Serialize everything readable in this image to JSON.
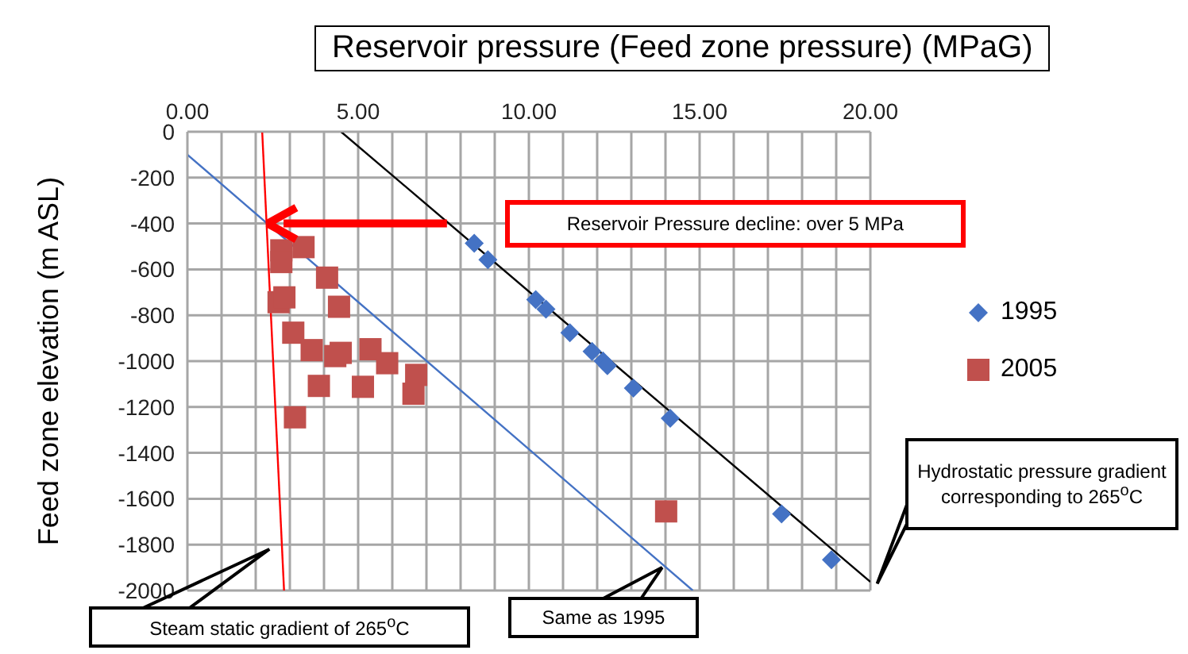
{
  "chart_data": {
    "type": "scatter",
    "xlabel": "Reservoir pressure (Feed zone pressure) (MPaG)",
    "ylabel": "Feed zone elevation (m ASL)",
    "xlim": [
      0,
      20
    ],
    "xticks": [
      {
        "value": 0,
        "label": "0.00"
      },
      {
        "value": 1,
        "label": null
      },
      {
        "value": 2,
        "label": null
      },
      {
        "value": 3,
        "label": null
      },
      {
        "value": 4,
        "label": null
      },
      {
        "value": 5,
        "label": "5.00"
      },
      {
        "value": 6,
        "label": null
      },
      {
        "value": 7,
        "label": null
      },
      {
        "value": 8,
        "label": null
      },
      {
        "value": 9,
        "label": null
      },
      {
        "value": 10,
        "label": "10.00"
      },
      {
        "value": 11,
        "label": null
      },
      {
        "value": 12,
        "label": null
      },
      {
        "value": 13,
        "label": null
      },
      {
        "value": 14,
        "label": null
      },
      {
        "value": 15,
        "label": "15.00"
      },
      {
        "value": 16,
        "label": null
      },
      {
        "value": 17,
        "label": null
      },
      {
        "value": 18,
        "label": null
      },
      {
        "value": 19,
        "label": null
      },
      {
        "value": 20,
        "label": "20.00"
      }
    ],
    "ylim": [
      -2000,
      0
    ],
    "yticks": [
      -2000,
      -1800,
      -1600,
      -1400,
      -1200,
      -1000,
      -800,
      -600,
      -400,
      -200,
      0
    ],
    "grid": true,
    "legend": "right",
    "series": [
      {
        "name": "1995",
        "marker": "diamond",
        "color": "#4472c4",
        "x": [
          8.4,
          8.8,
          10.2,
          10.5,
          11.2,
          11.85,
          12.17,
          12.3,
          13.06,
          14.14,
          17.4,
          18.86
        ],
        "values": [
          -486,
          -558,
          -732,
          -773,
          -876,
          -958,
          -999,
          -1020,
          -1118,
          -1249,
          -1666,
          -1866
        ]
      },
      {
        "name": "2005",
        "marker": "square",
        "color": "#c0504d",
        "x": [
          2.75,
          3.4,
          2.75,
          4.09,
          4.44,
          2.67,
          2.84,
          3.1,
          3.64,
          4.33,
          4.49,
          5.36,
          5.85,
          6.7,
          6.62,
          3.85,
          5.14,
          3.15,
          14.02
        ],
        "values": [
          -517,
          -503,
          -568,
          -636,
          -763,
          -743,
          -722,
          -876,
          -952,
          -978,
          -964,
          -948,
          -1009,
          -1060,
          -1142,
          -1108,
          -1112,
          -1245,
          -1655
        ]
      },
      {
        "type": "line",
        "color": "#000000",
        "x": [
          4.5,
          20
        ],
        "values": [
          0,
          -1962
        ]
      },
      {
        "type": "line",
        "color": "#4472c4",
        "x": [
          0,
          14.8
        ],
        "values": [
          -100,
          -2000
        ]
      },
      {
        "type": "line",
        "color": "#ff0000",
        "x": [
          2.19,
          2.83
        ],
        "values": [
          0,
          -2000
        ]
      }
    ],
    "annotations": [
      "Reservoir Pressure decline: over 5 MPa",
      "Hydrostatic pressure gradient corresponding to 265$^{o}$C",
      "Steam static gradient of 265$^{o}$C",
      "Same as 1995"
    ]
  }
}
